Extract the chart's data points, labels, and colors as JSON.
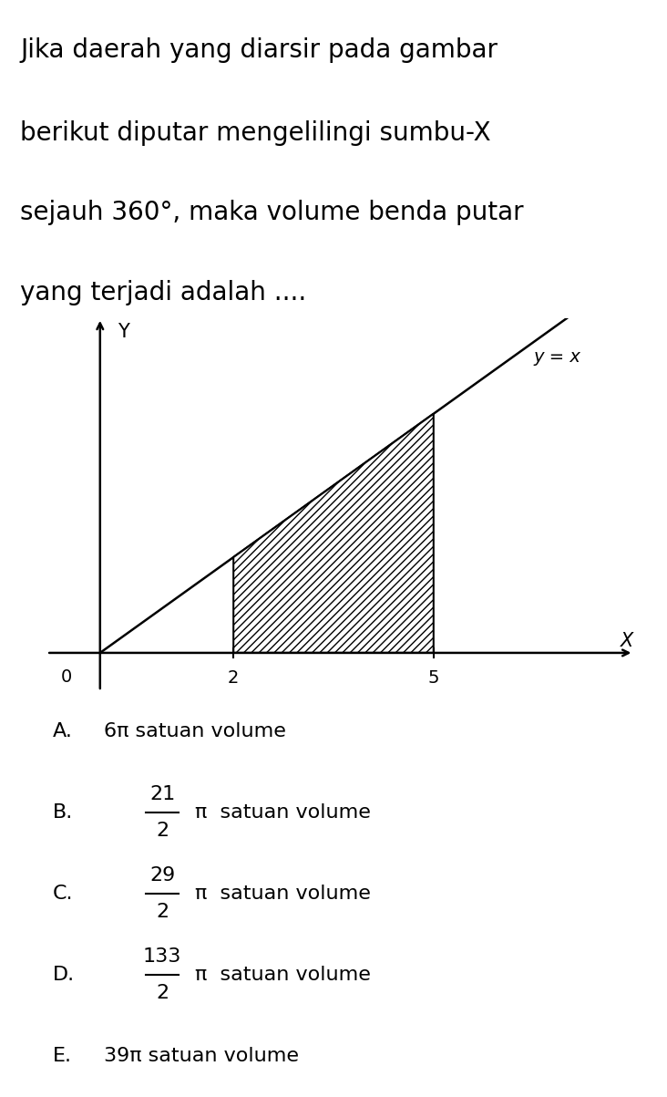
{
  "title_lines": [
    "Jika daerah yang diarsir pada gambar",
    "berikut diputar mengelilingi sumbu-\\it{X}",
    "sejauh 360°, maka volume benda putar",
    "yang terjadi adalah ...."
  ],
  "title_text": "Jika daerah yang diarsir pada gambar\nberikut diputar mengelilingi sumbu-X\nsejauh 360°, maka volume benda putar\nyang terjadi adalah ....",
  "title_fontsize": 20,
  "curve_label": "y = x",
  "x_label": "X",
  "y_label": "Y",
  "origin_label": "0",
  "x_ticks": [
    2,
    5
  ],
  "x_tick_labels": [
    "2",
    "5"
  ],
  "hatch_pattern": "////",
  "bg_color": "#ffffff",
  "options": [
    {
      "letter": "A.",
      "text_plain": "6π satuan volume",
      "has_fraction": false
    },
    {
      "letter": "B.",
      "numerator": "21",
      "denominator": "2",
      "suffix": "π  satuan volume",
      "has_fraction": true
    },
    {
      "letter": "C.",
      "numerator": "29",
      "denominator": "2",
      "suffix": "π  satuan volume",
      "has_fraction": true
    },
    {
      "letter": "D.",
      "numerator": "133",
      "denominator": "2",
      "suffix": "π  satuan volume",
      "has_fraction": true
    },
    {
      "letter": "E.",
      "text_plain": "39π satuan volume",
      "has_fraction": false
    }
  ],
  "options_fontsize": 16,
  "axis_xlim": [
    -0.8,
    8.0
  ],
  "axis_ylim": [
    -0.8,
    7.0
  ]
}
